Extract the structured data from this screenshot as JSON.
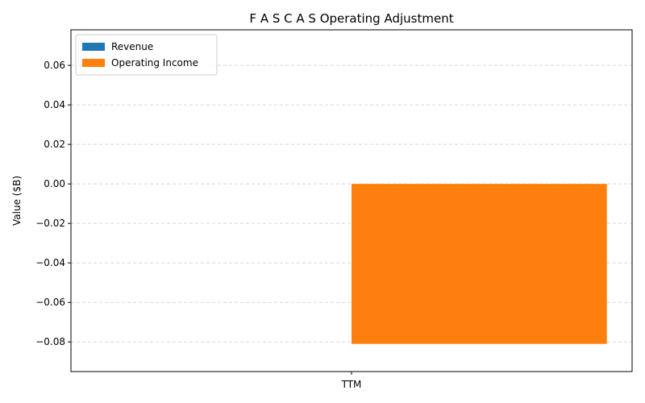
{
  "chart_data": {
    "type": "bar",
    "title": "F A S C A S Operating Adjustment",
    "xlabel": "",
    "ylabel": "Value ($B)",
    "categories": [
      "TTM"
    ],
    "series": [
      {
        "name": "Revenue",
        "values": [
          0.0
        ],
        "color": "#1f77b4"
      },
      {
        "name": "Operating Income",
        "values": [
          -0.081
        ],
        "color": "#ff7f0e"
      }
    ],
    "ylim": [
      -0.095,
      0.078
    ],
    "yticks": [
      -0.08,
      -0.06,
      -0.04,
      -0.02,
      0.0,
      0.02,
      0.04,
      0.06
    ],
    "ytick_labels": [
      "−0.08",
      "−0.06",
      "−0.04",
      "−0.02",
      "0.00",
      "0.02",
      "0.04",
      "0.06"
    ],
    "grid": "y-dashed",
    "legend_position": "top-left"
  }
}
